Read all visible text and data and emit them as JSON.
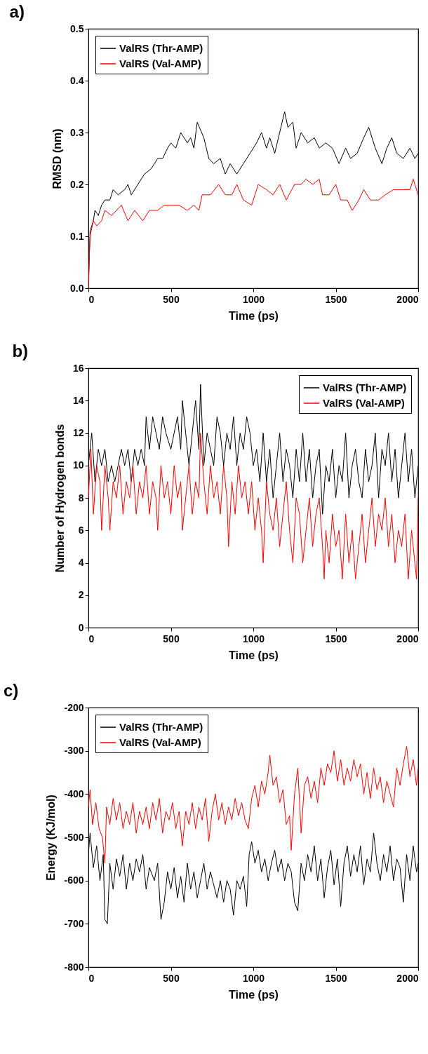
{
  "chart_data": [
    {
      "type": "line",
      "title": "a)",
      "xlabel": "Time (ps)",
      "ylabel": "RMSD (nm)",
      "xlim": [
        0,
        2000
      ],
      "xticks": [
        0,
        500,
        1000,
        1500,
        2000
      ],
      "ylim": [
        0,
        0.5
      ],
      "yticks": [
        {
          "value": 0,
          "label": "0.0"
        },
        0.1,
        0.2,
        0.3,
        0.4,
        0.5
      ],
      "legend": "top left",
      "grid": false,
      "series": [
        {
          "name": "ValRS (Thr-AMP)",
          "color": "#000000",
          "x": [
            0,
            10,
            30,
            40,
            60,
            80,
            100,
            130,
            150,
            180,
            220,
            240,
            260,
            300,
            340,
            380,
            420,
            450,
            480,
            500,
            530,
            560,
            600,
            620,
            640,
            660,
            700,
            730,
            760,
            800,
            830,
            860,
            900,
            940,
            980,
            1020,
            1050,
            1080,
            1100,
            1130,
            1160,
            1190,
            1210,
            1240,
            1260,
            1290,
            1330,
            1370,
            1400,
            1440,
            1480,
            1520,
            1560,
            1590,
            1630,
            1670,
            1700,
            1740,
            1780,
            1810,
            1840,
            1870,
            1910,
            1950,
            1980,
            2000
          ],
          "values": [
            0,
            0.11,
            0.13,
            0.15,
            0.14,
            0.16,
            0.17,
            0.17,
            0.19,
            0.18,
            0.19,
            0.2,
            0.18,
            0.2,
            0.22,
            0.23,
            0.25,
            0.25,
            0.27,
            0.28,
            0.27,
            0.3,
            0.28,
            0.29,
            0.27,
            0.32,
            0.29,
            0.25,
            0.24,
            0.25,
            0.22,
            0.24,
            0.22,
            0.24,
            0.26,
            0.28,
            0.3,
            0.27,
            0.29,
            0.26,
            0.3,
            0.34,
            0.31,
            0.32,
            0.27,
            0.3,
            0.28,
            0.29,
            0.27,
            0.28,
            0.27,
            0.24,
            0.27,
            0.25,
            0.26,
            0.29,
            0.31,
            0.27,
            0.24,
            0.27,
            0.29,
            0.26,
            0.25,
            0.27,
            0.25,
            0.26
          ]
        },
        {
          "name": "ValRS (Val-AMP)",
          "color": "#ff0000",
          "x": [
            0,
            10,
            30,
            50,
            80,
            100,
            140,
            200,
            240,
            280,
            330,
            370,
            420,
            460,
            500,
            550,
            600,
            640,
            670,
            690,
            740,
            790,
            830,
            870,
            900,
            940,
            990,
            1030,
            1080,
            1120,
            1160,
            1200,
            1250,
            1290,
            1320,
            1360,
            1400,
            1420,
            1460,
            1500,
            1530,
            1570,
            1600,
            1640,
            1670,
            1710,
            1760,
            1800,
            1850,
            1900,
            1950,
            1970,
            2000
          ],
          "values": [
            0,
            0.1,
            0.13,
            0.12,
            0.13,
            0.15,
            0.14,
            0.16,
            0.13,
            0.15,
            0.13,
            0.15,
            0.15,
            0.16,
            0.16,
            0.16,
            0.15,
            0.16,
            0.15,
            0.18,
            0.18,
            0.2,
            0.18,
            0.18,
            0.2,
            0.17,
            0.16,
            0.2,
            0.19,
            0.18,
            0.2,
            0.17,
            0.2,
            0.2,
            0.21,
            0.2,
            0.21,
            0.18,
            0.18,
            0.2,
            0.17,
            0.17,
            0.15,
            0.17,
            0.19,
            0.17,
            0.17,
            0.18,
            0.19,
            0.19,
            0.19,
            0.21,
            0.18
          ]
        }
      ]
    },
    {
      "type": "line",
      "title": "b)",
      "xlabel": "Time (ps)",
      "ylabel": "Number of Hydrogen bonds",
      "xlim": [
        0,
        2000
      ],
      "xticks": [
        0,
        500,
        1000,
        1500,
        2000
      ],
      "ylim": [
        0,
        16
      ],
      "yticks": [
        0,
        2,
        4,
        6,
        8,
        10,
        12,
        14,
        16
      ],
      "legend": "top right",
      "grid": false,
      "series": [
        {
          "name": "ValRS (Thr-AMP)",
          "color": "#000000",
          "x": [
            0,
            20,
            40,
            60,
            80,
            100,
            120,
            140,
            160,
            180,
            200,
            220,
            240,
            260,
            280,
            300,
            320,
            340,
            350,
            370,
            390,
            410,
            430,
            450,
            470,
            500,
            520,
            540,
            560,
            570,
            590,
            610,
            630,
            650,
            670,
            680,
            700,
            720,
            740,
            760,
            780,
            800,
            820,
            840,
            860,
            880,
            900,
            920,
            940,
            960,
            980,
            1000,
            1020,
            1040,
            1060,
            1080,
            1100,
            1120,
            1140,
            1160,
            1180,
            1200,
            1220,
            1240,
            1260,
            1280,
            1300,
            1320,
            1340,
            1360,
            1380,
            1400,
            1420,
            1440,
            1460,
            1480,
            1500,
            1520,
            1540,
            1560,
            1580,
            1600,
            1620,
            1640,
            1660,
            1680,
            1700,
            1720,
            1740,
            1760,
            1780,
            1800,
            1820,
            1840,
            1860,
            1880,
            1900,
            1920,
            1940,
            1960,
            1980,
            2000
          ],
          "values": [
            10,
            12,
            9,
            11,
            10,
            11,
            9,
            10,
            9,
            10,
            11,
            10,
            11,
            9,
            11,
            10,
            11,
            10,
            13,
            11,
            13,
            12,
            11,
            13,
            12,
            11,
            12,
            13,
            11,
            14,
            12,
            10,
            12,
            14,
            11,
            15,
            10,
            12,
            11,
            10,
            13,
            12,
            10,
            12,
            11,
            13,
            10,
            12,
            11,
            13,
            12,
            10,
            11,
            9,
            12,
            9,
            11,
            8,
            10,
            12,
            9,
            11,
            10,
            8,
            11,
            9,
            12,
            9,
            11,
            8,
            10,
            11,
            7,
            10,
            9,
            11,
            8,
            10,
            9,
            12,
            8,
            10,
            11,
            9,
            8,
            11,
            9,
            10,
            12,
            8,
            11,
            10,
            12,
            9,
            11,
            8,
            10,
            12,
            9,
            11,
            8,
            10
          ]
        },
        {
          "name": "ValRS (Val-AMP)",
          "color": "#ff0000",
          "x": [
            0,
            15,
            30,
            50,
            70,
            80,
            100,
            120,
            130,
            150,
            170,
            190,
            210,
            230,
            250,
            270,
            290,
            310,
            330,
            350,
            370,
            390,
            410,
            420,
            440,
            460,
            480,
            500,
            520,
            540,
            560,
            570,
            590,
            610,
            630,
            650,
            670,
            680,
            700,
            720,
            740,
            760,
            780,
            800,
            820,
            840,
            850,
            870,
            890,
            910,
            930,
            950,
            970,
            990,
            1010,
            1030,
            1050,
            1060,
            1080,
            1100,
            1120,
            1140,
            1160,
            1180,
            1200,
            1220,
            1240,
            1260,
            1280,
            1300,
            1320,
            1340,
            1360,
            1380,
            1400,
            1420,
            1430,
            1440,
            1460,
            1480,
            1500,
            1520,
            1540,
            1560,
            1580,
            1600,
            1620,
            1640,
            1660,
            1680,
            1700,
            1720,
            1740,
            1760,
            1780,
            1800,
            1820,
            1840,
            1860,
            1880,
            1900,
            1920,
            1940,
            1960,
            1980,
            1990,
            2000
          ],
          "values": [
            8,
            11,
            7,
            10,
            9,
            6,
            10,
            8,
            6,
            9,
            8,
            10,
            7,
            9,
            8,
            10,
            7,
            9,
            8,
            10,
            7,
            9,
            8,
            6,
            10,
            8,
            9,
            7,
            10,
            8,
            9,
            6,
            8,
            10,
            7,
            9,
            8,
            12,
            9,
            7,
            10,
            8,
            9,
            7,
            10,
            8,
            5,
            9,
            7,
            10,
            8,
            9,
            7,
            9,
            6,
            8,
            6,
            4,
            9,
            7,
            6,
            8,
            5,
            7,
            9,
            6,
            4,
            8,
            7,
            4,
            6,
            8,
            5,
            7,
            8,
            5,
            3,
            6,
            4,
            7,
            5,
            6,
            3,
            7,
            4,
            6,
            3,
            5,
            7,
            4,
            6,
            8,
            5,
            7,
            6,
            8,
            5,
            7,
            4,
            6,
            5,
            7,
            3,
            6,
            4,
            3,
            8
          ]
        }
      ]
    },
    {
      "type": "line",
      "title": "c)",
      "xlabel": "Time (ps)",
      "ylabel": "Energy (KJ/mol)",
      "xlim": [
        0,
        2000
      ],
      "xticks": [
        0,
        500,
        1000,
        1500,
        2000
      ],
      "ylim": [
        -800,
        -200
      ],
      "yticks": [
        -800,
        -700,
        -600,
        -500,
        -400,
        -300,
        -200
      ],
      "legend": "top left",
      "grid": false,
      "series": [
        {
          "name": "ValRS (Thr-AMP)",
          "color": "#000000",
          "x": [
            0,
            10,
            30,
            50,
            70,
            90,
            100,
            115,
            130,
            150,
            170,
            190,
            210,
            230,
            250,
            270,
            290,
            310,
            330,
            350,
            370,
            400,
            420,
            440,
            460,
            480,
            500,
            520,
            540,
            560,
            580,
            600,
            620,
            640,
            660,
            680,
            700,
            720,
            740,
            760,
            780,
            800,
            820,
            840,
            860,
            880,
            900,
            920,
            940,
            960,
            975,
            990,
            1010,
            1030,
            1050,
            1070,
            1090,
            1110,
            1130,
            1150,
            1170,
            1190,
            1210,
            1230,
            1250,
            1270,
            1290,
            1310,
            1330,
            1350,
            1370,
            1390,
            1410,
            1430,
            1450,
            1470,
            1490,
            1510,
            1530,
            1550,
            1570,
            1590,
            1610,
            1630,
            1650,
            1670,
            1690,
            1710,
            1730,
            1750,
            1770,
            1790,
            1810,
            1830,
            1850,
            1870,
            1890,
            1910,
            1930,
            1950,
            1970,
            1990,
            2000
          ],
          "values": [
            -540,
            -490,
            -570,
            -520,
            -600,
            -540,
            -690,
            -700,
            -560,
            -620,
            -550,
            -590,
            -540,
            -620,
            -560,
            -600,
            -550,
            -580,
            -540,
            -620,
            -570,
            -600,
            -560,
            -690,
            -650,
            -580,
            -620,
            -570,
            -640,
            -590,
            -650,
            -560,
            -620,
            -580,
            -640,
            -600,
            -560,
            -620,
            -580,
            -610,
            -640,
            -600,
            -650,
            -600,
            -620,
            -680,
            -600,
            -620,
            -590,
            -660,
            -540,
            -510,
            -560,
            -530,
            -580,
            -550,
            -600,
            -560,
            -530,
            -580,
            -550,
            -600,
            -560,
            -580,
            -650,
            -670,
            -560,
            -600,
            -540,
            -580,
            -520,
            -600,
            -550,
            -640,
            -570,
            -530,
            -610,
            -550,
            -660,
            -560,
            -520,
            -590,
            -540,
            -580,
            -520,
            -610,
            -550,
            -580,
            -490,
            -560,
            -600,
            -540,
            -580,
            -520,
            -600,
            -550,
            -570,
            -650,
            -540,
            -600,
            -520,
            -580,
            -560
          ]
        },
        {
          "name": "ValRS (Val-AMP)",
          "color": "#ff0000",
          "x": [
            0,
            10,
            25,
            45,
            65,
            85,
            100,
            110,
            130,
            150,
            170,
            190,
            210,
            230,
            250,
            270,
            290,
            310,
            330,
            350,
            370,
            390,
            410,
            430,
            450,
            470,
            490,
            510,
            530,
            550,
            570,
            590,
            610,
            630,
            650,
            670,
            690,
            710,
            730,
            750,
            770,
            790,
            810,
            830,
            850,
            870,
            890,
            910,
            930,
            950,
            970,
            990,
            1010,
            1030,
            1050,
            1070,
            1090,
            1100,
            1120,
            1140,
            1160,
            1180,
            1200,
            1220,
            1230,
            1250,
            1270,
            1290,
            1310,
            1330,
            1350,
            1370,
            1390,
            1410,
            1430,
            1450,
            1470,
            1490,
            1510,
            1530,
            1550,
            1570,
            1590,
            1610,
            1630,
            1650,
            1670,
            1690,
            1710,
            1730,
            1750,
            1770,
            1790,
            1810,
            1830,
            1850,
            1870,
            1890,
            1910,
            1930,
            1950,
            1970,
            1990,
            2000
          ],
          "values": [
            -430,
            -390,
            -470,
            -420,
            -480,
            -500,
            -560,
            -430,
            -470,
            -410,
            -460,
            -420,
            -480,
            -440,
            -470,
            -420,
            -490,
            -440,
            -470,
            -430,
            -480,
            -420,
            -460,
            -410,
            -490,
            -440,
            -460,
            -420,
            -480,
            -440,
            -520,
            -440,
            -470,
            -420,
            -480,
            -430,
            -460,
            -410,
            -510,
            -440,
            -400,
            -460,
            -420,
            -470,
            -430,
            -460,
            -410,
            -450,
            -420,
            -460,
            -480,
            -410,
            -380,
            -430,
            -370,
            -400,
            -350,
            -310,
            -380,
            -360,
            -420,
            -390,
            -470,
            -450,
            -530,
            -400,
            -340,
            -490,
            -380,
            -360,
            -410,
            -370,
            -420,
            -340,
            -380,
            -330,
            -350,
            -300,
            -370,
            -320,
            -380,
            -340,
            -370,
            -320,
            -360,
            -330,
            -400,
            -350,
            -410,
            -340,
            -390,
            -360,
            -420,
            -370,
            -400,
            -430,
            -340,
            -380,
            -330,
            -290,
            -360,
            -320,
            -380,
            -340
          ]
        }
      ]
    }
  ]
}
